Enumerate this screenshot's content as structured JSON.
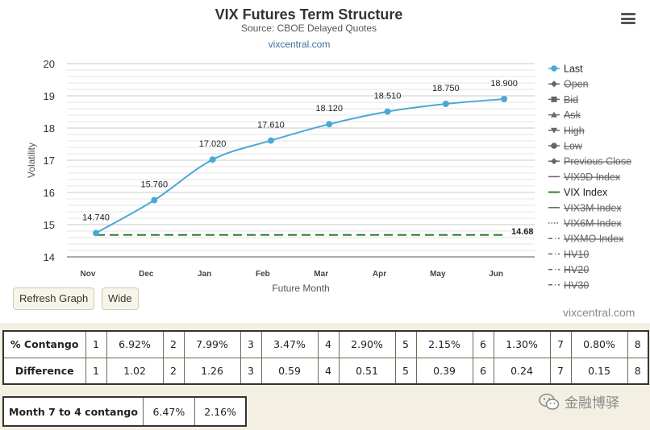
{
  "header": {
    "menu_icon": "hamburger-menu-icon"
  },
  "chart_data": {
    "type": "line",
    "title": "VIX Futures Term Structure",
    "subtitle": "Source: CBOE Delayed Quotes",
    "source_link": "vixcentral.com",
    "xlabel": "Future Month",
    "ylabel": "Volatility",
    "ylim": [
      14,
      20
    ],
    "yticks": [
      "14",
      "15",
      "16",
      "17",
      "18",
      "19",
      "20"
    ],
    "categories": [
      "Nov",
      "Dec",
      "Jan",
      "Feb",
      "Mar",
      "Apr",
      "May",
      "Jun"
    ],
    "series": [
      {
        "name": "Last",
        "color": "#4aa8d8",
        "values": [
          14.74,
          15.76,
          17.02,
          17.61,
          18.12,
          18.51,
          18.75,
          18.9
        ],
        "labels": [
          "14.740",
          "15.760",
          "17.020",
          "17.610",
          "18.120",
          "18.510",
          "18.750",
          "18.900"
        ]
      },
      {
        "name": "VIX Index",
        "color": "#2e7d2e",
        "value": 14.68,
        "label": "14.68"
      }
    ],
    "legend": [
      {
        "name": "Last",
        "enabled": true,
        "symbol": "circle-line"
      },
      {
        "name": "Open",
        "enabled": false,
        "symbol": "diamond-line"
      },
      {
        "name": "Bid",
        "enabled": false,
        "symbol": "square-line"
      },
      {
        "name": "Ask",
        "enabled": false,
        "symbol": "triangle-line"
      },
      {
        "name": "High",
        "enabled": false,
        "symbol": "triangle-down-line"
      },
      {
        "name": "Low",
        "enabled": false,
        "symbol": "circle-line"
      },
      {
        "name": "Previous Close",
        "enabled": false,
        "symbol": "diamond-line"
      },
      {
        "name": "VIX9D Index",
        "enabled": false,
        "symbol": "solid"
      },
      {
        "name": "VIX Index",
        "enabled": true,
        "symbol": "solid"
      },
      {
        "name": "VIX3M Index",
        "enabled": false,
        "symbol": "solid"
      },
      {
        "name": "VIX6M Index",
        "enabled": false,
        "symbol": "dotted"
      },
      {
        "name": "VIXMO Index",
        "enabled": false,
        "symbol": "dashdot"
      },
      {
        "name": "HV10",
        "enabled": false,
        "symbol": "dashdot"
      },
      {
        "name": "HV20",
        "enabled": false,
        "symbol": "dashdot"
      },
      {
        "name": "HV30",
        "enabled": false,
        "symbol": "dashdot"
      }
    ],
    "legend_position": "right"
  },
  "buttons": {
    "refresh": "Refresh Graph",
    "wide": "Wide"
  },
  "watermark": "vixcentral.com",
  "contango_table": {
    "rows": [
      {
        "label": "% Contango",
        "cells": [
          "1",
          "6.92%",
          "2",
          "7.99%",
          "3",
          "3.47%",
          "4",
          "2.90%",
          "5",
          "2.15%",
          "6",
          "1.30%",
          "7",
          "0.80%",
          "8"
        ]
      },
      {
        "label": "Difference",
        "cells": [
          "1",
          "1.02",
          "2",
          "1.26",
          "3",
          "0.59",
          "4",
          "0.51",
          "5",
          "0.39",
          "6",
          "0.24",
          "7",
          "0.15",
          "8"
        ]
      }
    ]
  },
  "month74": {
    "label": "Month 7 to 4 contango",
    "v1": "6.47%",
    "v2": "2.16%"
  },
  "wechat": {
    "text": "金融博驿",
    "icon": "wechat-icon"
  }
}
